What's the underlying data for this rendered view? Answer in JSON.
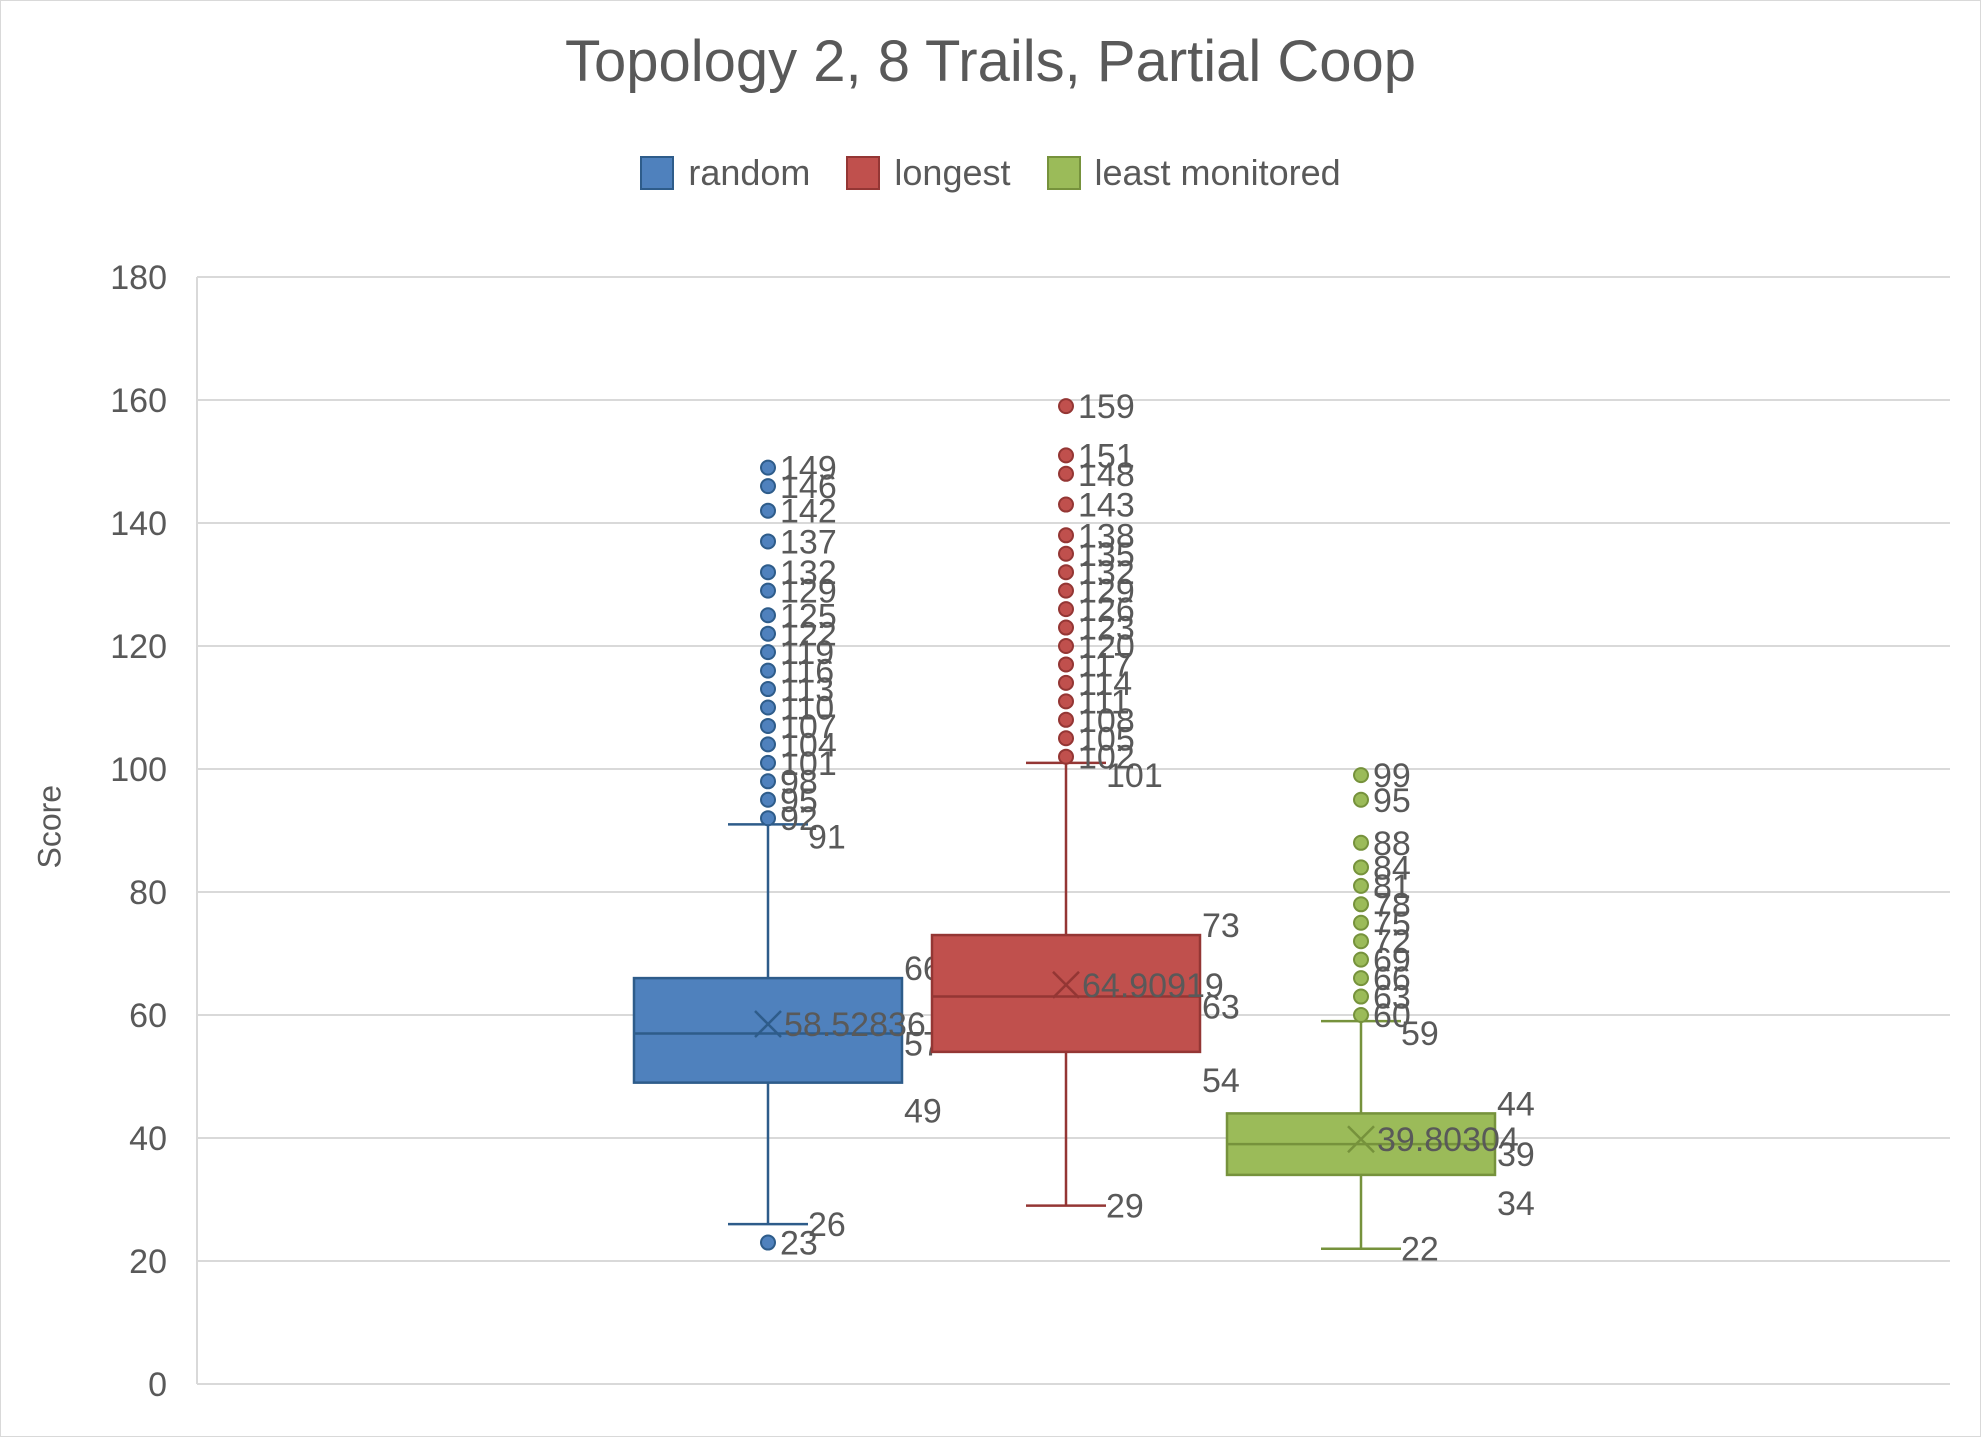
{
  "chart_data": {
    "type": "box",
    "title": "Topology 2, 8 Trails, Partial Coop",
    "xlabel": "",
    "ylabel": "Score",
    "ylim": [
      0,
      180
    ],
    "yticks": [
      0,
      20,
      40,
      60,
      80,
      100,
      120,
      140,
      160,
      180
    ],
    "grid": true,
    "legend_position": "top",
    "series": [
      {
        "name": "random",
        "color": "#4f81bd",
        "edge_color": "#2e5c8a",
        "min_whisker": 26,
        "q1": 49,
        "median": 57,
        "q3": 66,
        "max_whisker": 91,
        "mean": 58.52836,
        "mean_label": "58.52836",
        "outliers": [
          23,
          92,
          95,
          98,
          101,
          104,
          107,
          110,
          113,
          116,
          119,
          122,
          125,
          129,
          132,
          137,
          142,
          146,
          149
        ]
      },
      {
        "name": "longest",
        "color": "#c0504d",
        "edge_color": "#943634",
        "min_whisker": 29,
        "q1": 54,
        "median": 63,
        "q3": 73,
        "max_whisker": 101,
        "mean": 64.90919,
        "mean_label": "64.90919",
        "outliers": [
          102,
          105,
          108,
          111,
          114,
          117,
          120,
          123,
          126,
          129,
          132,
          135,
          138,
          143,
          148,
          151,
          159
        ]
      },
      {
        "name": "least monitored",
        "color": "#9bbb59",
        "edge_color": "#76923c",
        "min_whisker": 22,
        "q1": 34,
        "median": 39,
        "q3": 44,
        "max_whisker": 59,
        "mean": 39.80304,
        "mean_label": "39.80304",
        "outliers": [
          60,
          63,
          66,
          69,
          72,
          75,
          78,
          81,
          84,
          88,
          95,
          99
        ]
      }
    ]
  }
}
